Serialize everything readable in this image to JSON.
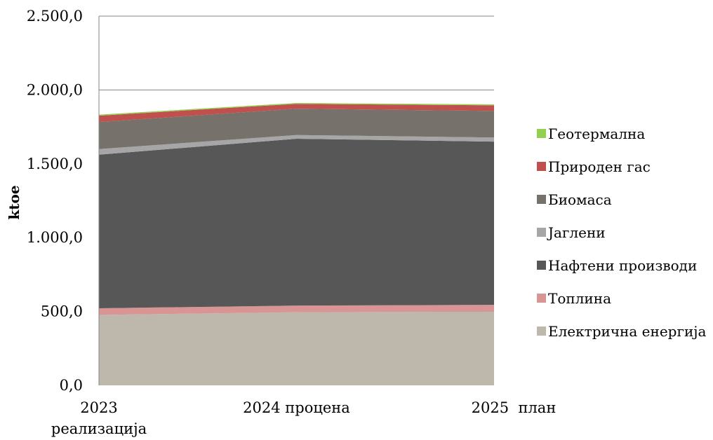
{
  "chart_data": {
    "type": "area",
    "stacked": true,
    "ylabel": "ktoe",
    "ylim": [
      0,
      2500
    ],
    "yticks": [
      "0,0",
      "500,0",
      "1.000,0",
      "1.500,0",
      "2.000,0",
      "2.500,0"
    ],
    "categories": [
      "2023 реализација",
      "2024 процена",
      "2025  план"
    ],
    "grid": "horizontal",
    "legend_position": "right",
    "series": [
      {
        "name": "Електрична енергија",
        "color": "#bdb8ab",
        "values": [
          477,
          495,
          500
        ]
      },
      {
        "name": "Топлина",
        "color": "#d99594",
        "values": [
          45,
          45,
          45
        ]
      },
      {
        "name": "Нафтени производи",
        "color": "#575757",
        "values": [
          1040,
          1130,
          1105
        ]
      },
      {
        "name": "Јаглени",
        "color": "#a6a6a6",
        "values": [
          38,
          25,
          28
        ]
      },
      {
        "name": "Биомаса",
        "color": "#77716b",
        "values": [
          183,
          178,
          180
        ]
      },
      {
        "name": "Природен гас",
        "color": "#c0504d",
        "values": [
          43,
          33,
          38
        ]
      },
      {
        "name": "Геотермална",
        "color": "#92d050",
        "values": [
          7,
          6,
          6
        ]
      }
    ]
  }
}
